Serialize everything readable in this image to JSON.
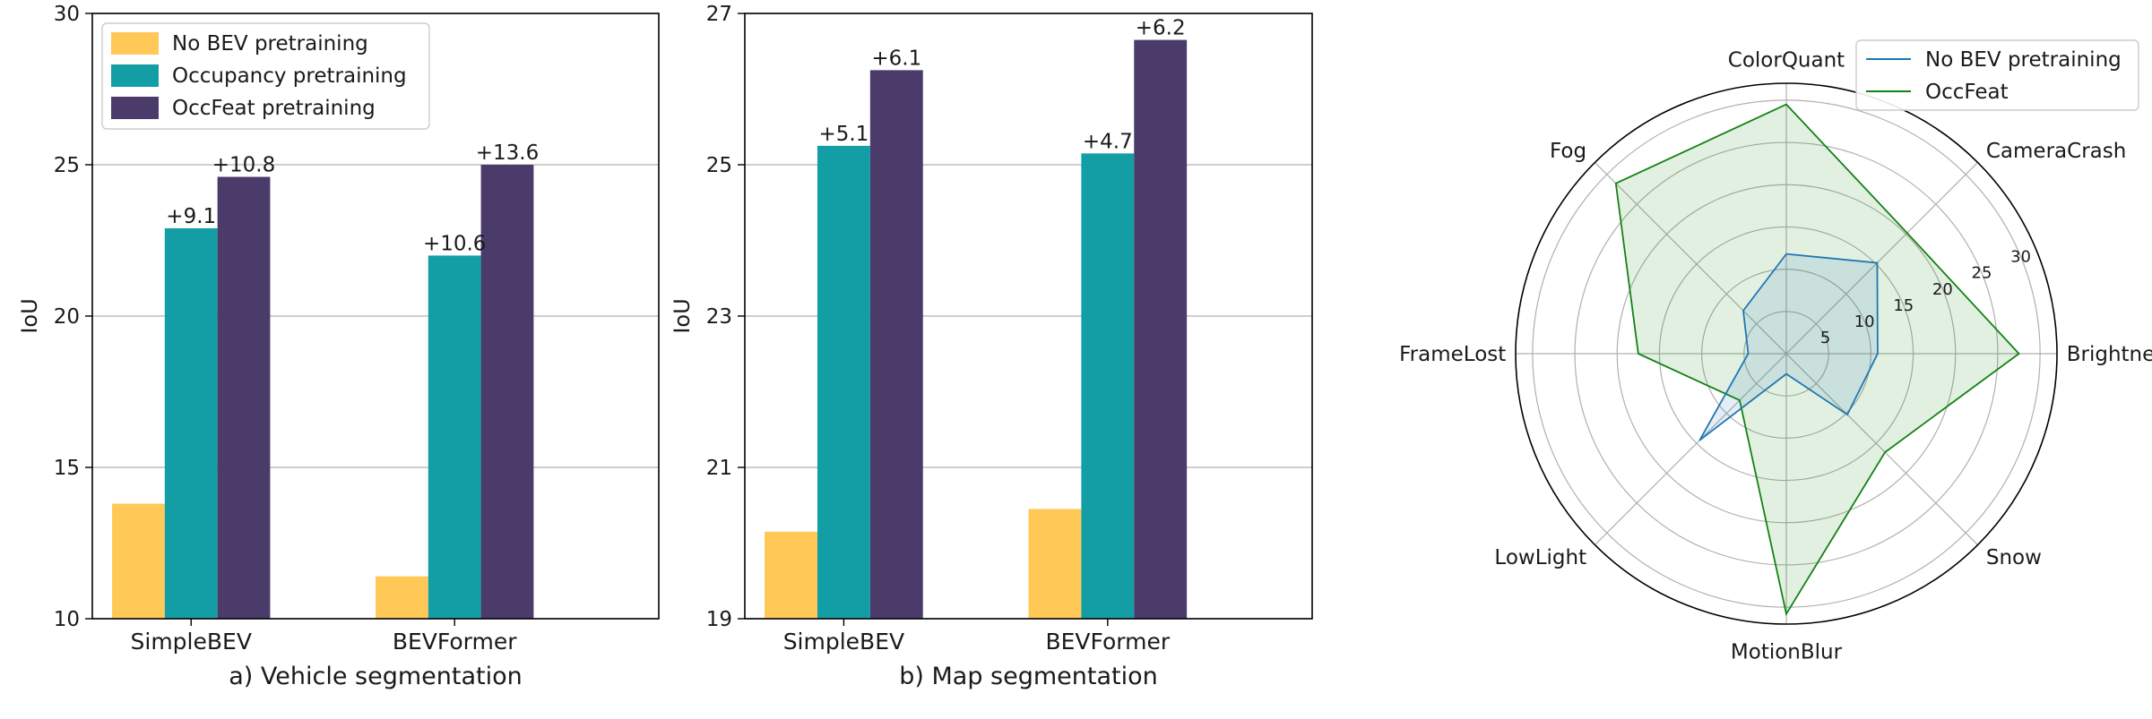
{
  "colors": {
    "no_bev": "#ffc857",
    "occupancy": "#139ea6",
    "occfeat": "#4a3b6b",
    "radar_no_bev": "#1f77b4",
    "radar_occfeat": "#138213",
    "grid": "#b0b0b0"
  },
  "chart_data": [
    {
      "type": "bar",
      "title": "a) Vehicle segmentation",
      "ylabel": "IoU",
      "ylim": [
        10,
        30
      ],
      "yticks": [
        10,
        15,
        20,
        25,
        30
      ],
      "categories": [
        "SimpleBEV",
        "BEVFormer"
      ],
      "series": [
        {
          "name": "No BEV pretraining",
          "values": [
            13.8,
            11.4
          ]
        },
        {
          "name": "Occupancy pretraining",
          "values": [
            22.9,
            22.0
          ]
        },
        {
          "name": "OccFeat pretraining",
          "values": [
            24.6,
            25.0
          ]
        }
      ],
      "annotations": [
        {
          "category": "SimpleBEV",
          "series": "Occupancy pretraining",
          "text": "+9.1"
        },
        {
          "category": "SimpleBEV",
          "series": "OccFeat pretraining",
          "text": "+10.8"
        },
        {
          "category": "BEVFormer",
          "series": "Occupancy pretraining",
          "text": "+10.6"
        },
        {
          "category": "BEVFormer",
          "series": "OccFeat pretraining",
          "text": "+13.6"
        }
      ],
      "grid": true,
      "legend": "top-left"
    },
    {
      "type": "bar",
      "title": "b) Map segmentation",
      "ylabel": "IoU",
      "ylim": [
        19,
        27
      ],
      "yticks": [
        19,
        21,
        23,
        25,
        27
      ],
      "categories": [
        "SimpleBEV",
        "BEVFormer"
      ],
      "series": [
        {
          "name": "No BEV pretraining",
          "values": [
            20.15,
            20.45
          ]
        },
        {
          "name": "Occupancy pretraining",
          "values": [
            25.25,
            25.15
          ]
        },
        {
          "name": "OccFeat pretraining",
          "values": [
            26.25,
            26.65
          ]
        }
      ],
      "annotations": [
        {
          "category": "SimpleBEV",
          "series": "Occupancy pretraining",
          "text": "+5.1"
        },
        {
          "category": "SimpleBEV",
          "series": "OccFeat pretraining",
          "text": "+6.1"
        },
        {
          "category": "BEVFormer",
          "series": "Occupancy pretraining",
          "text": "+4.7"
        },
        {
          "category": "BEVFormer",
          "series": "OccFeat pretraining",
          "text": "+6.2"
        }
      ],
      "grid": true
    },
    {
      "type": "radar",
      "axes": [
        "Brightness",
        "CameraCrash",
        "ColorQuant",
        "Fog",
        "FrameLost",
        "LowLight",
        "MotionBlur",
        "Snow"
      ],
      "rlim": [
        0,
        32
      ],
      "rticks": [
        5,
        10,
        15,
        20,
        25,
        30
      ],
      "series": [
        {
          "name": "No BEV pretraining",
          "values": [
            10.8,
            15.2,
            11.8,
            7.2,
            4.5,
            14.5,
            2.4,
            10.2
          ]
        },
        {
          "name": "OccFeat",
          "values": [
            27.5,
            20.2,
            29.5,
            28.5,
            17.5,
            7.8,
            30.8,
            16.5
          ]
        }
      ],
      "legend": "top-right",
      "grid": true
    }
  ]
}
